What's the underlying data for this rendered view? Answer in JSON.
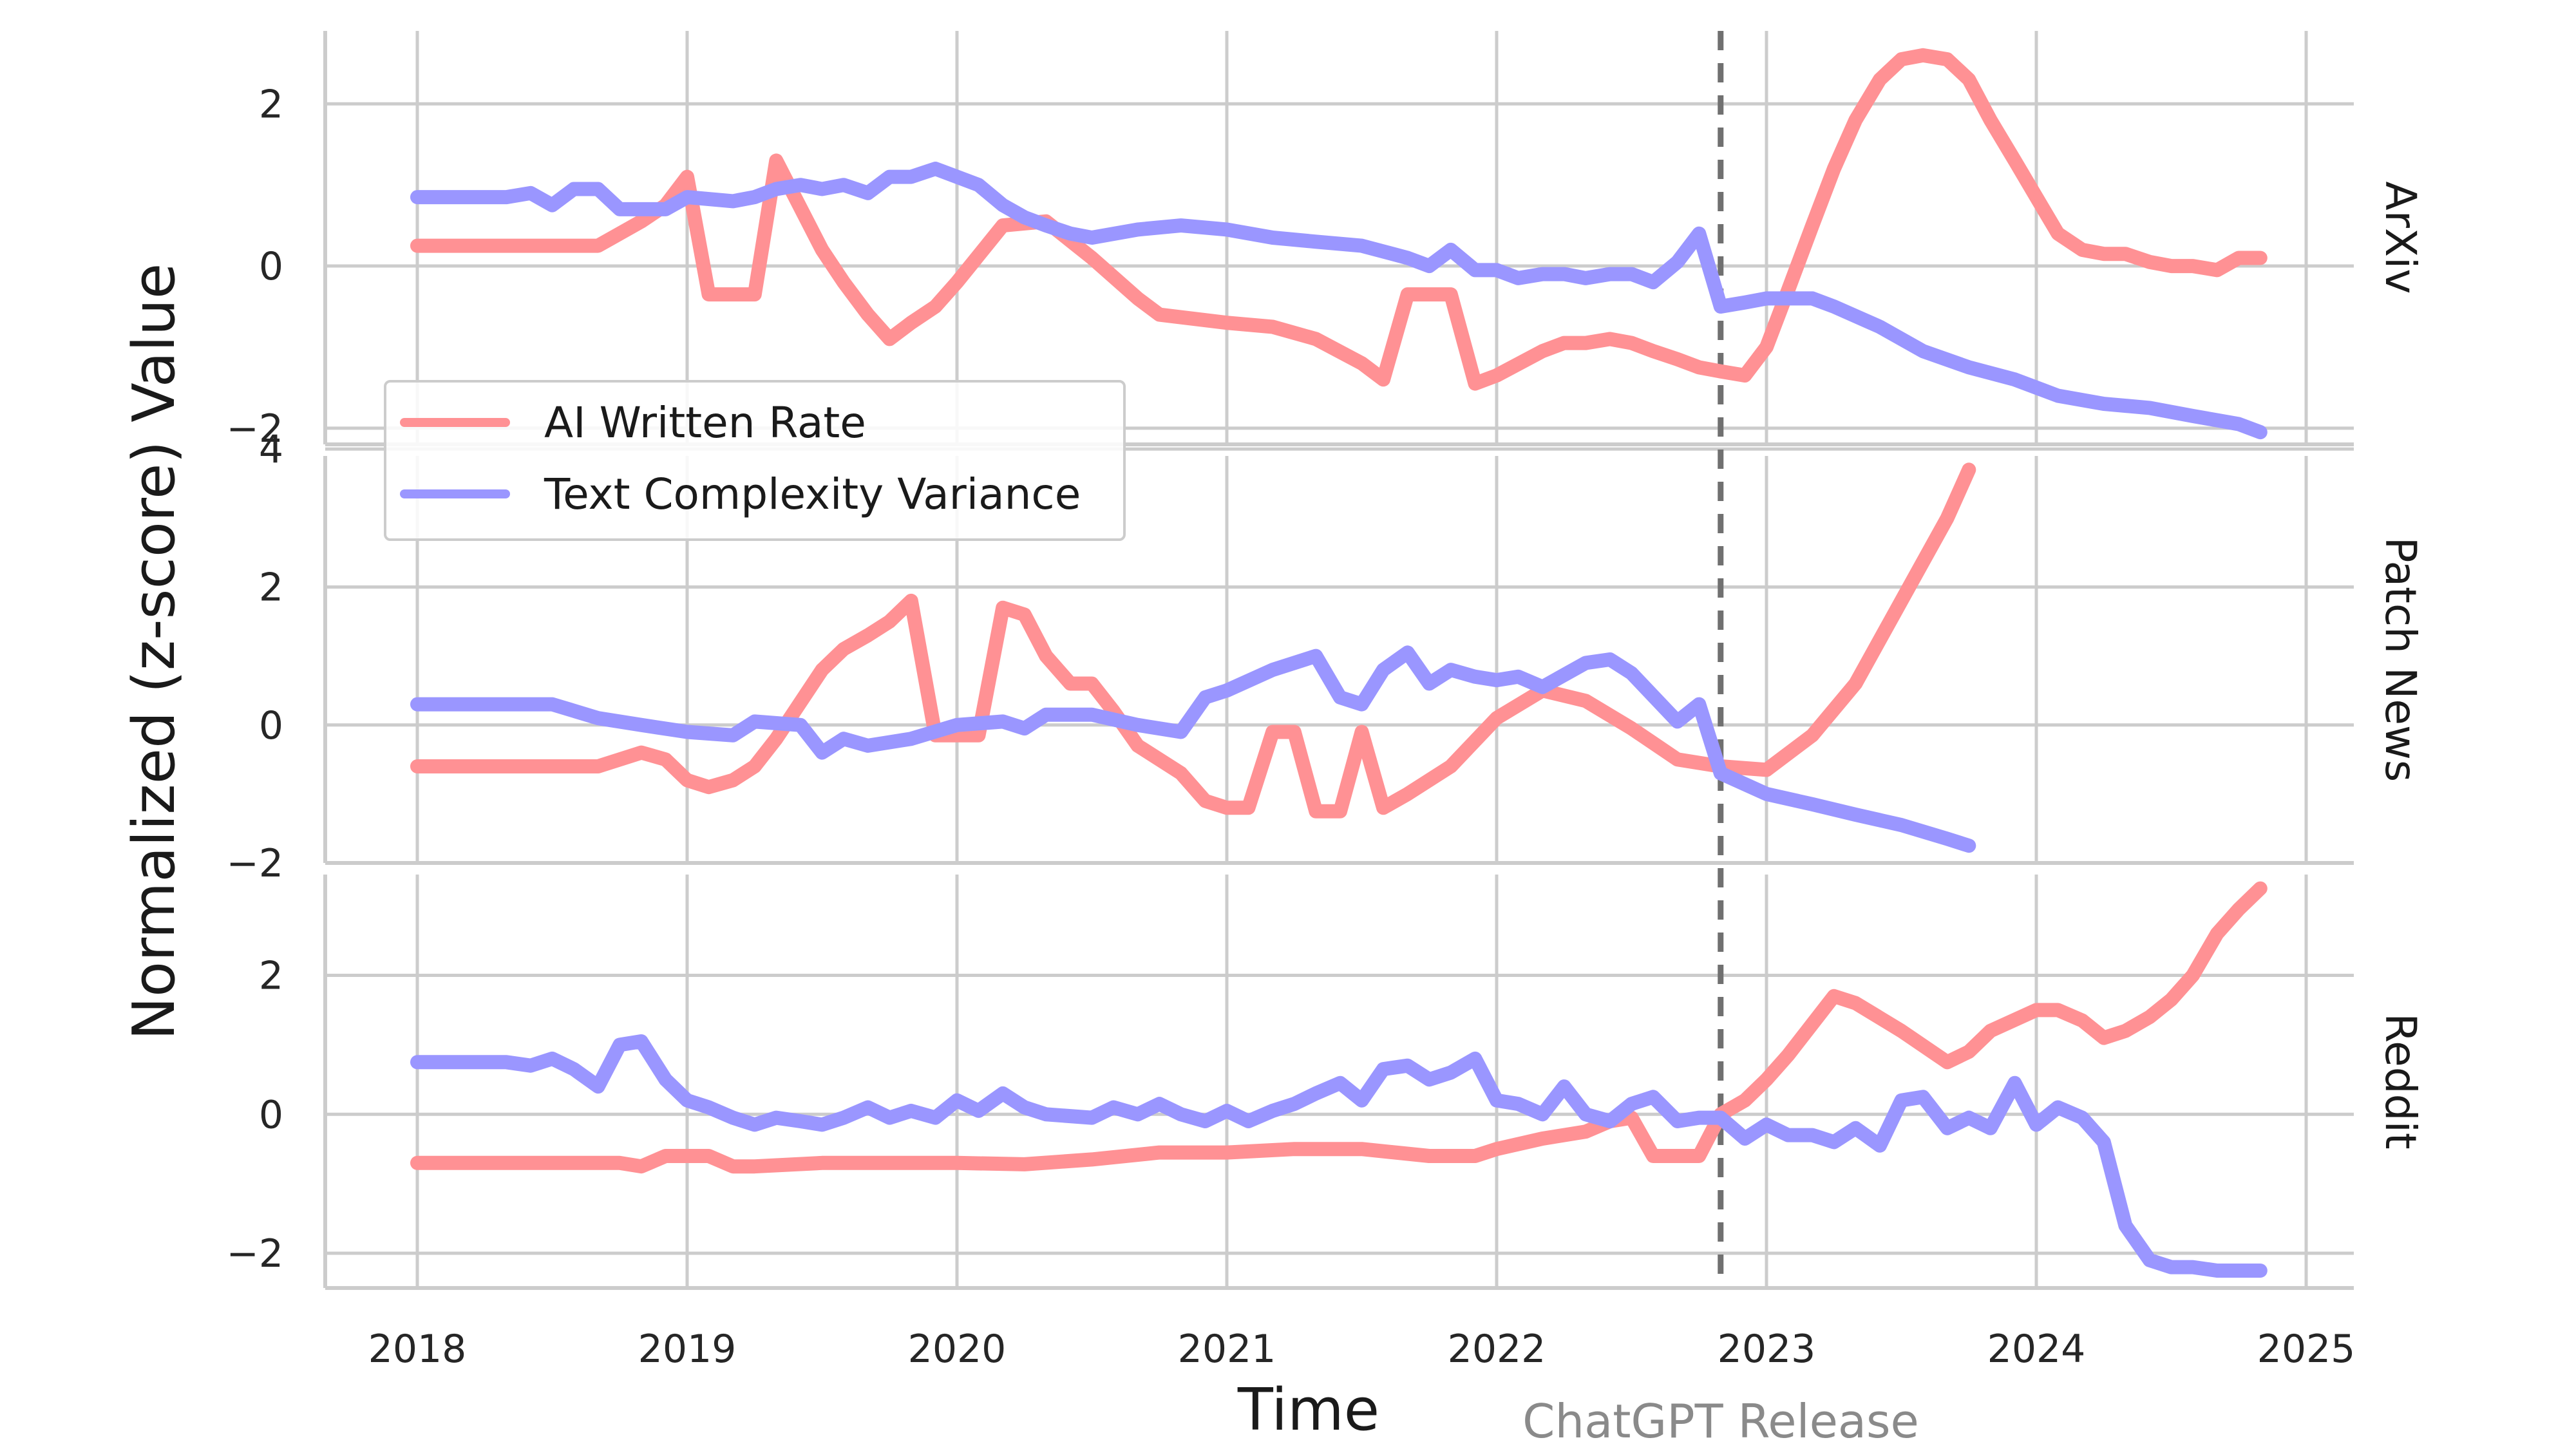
{
  "chart_data": {
    "type": "line",
    "xlabel": "Time",
    "ylabel": "Normalized (z-score) Value",
    "x_ticks": [
      "2018",
      "2019",
      "2020",
      "2021",
      "2022",
      "2023",
      "2024",
      "2025"
    ],
    "annotation": {
      "label": "ChatGPT Release",
      "x": 2022.83
    },
    "colors": {
      "ai": "#ff9194",
      "complexity": "#9a96ff",
      "grid": "#cccccc",
      "annotation": "#707070"
    },
    "legend": [
      {
        "name": "AI Written Rate",
        "color": "#ff9194"
      },
      {
        "name": "Text Complexity Variance",
        "color": "#9a96ff"
      }
    ],
    "panels": [
      {
        "facet": "ArXiv",
        "ylim": [
          -2.2,
          2.9
        ],
        "yticks": [
          -2,
          0,
          2
        ],
        "ytick_labels": [
          "−2",
          "0",
          "2"
        ],
        "series": [
          {
            "name": "AI Written Rate",
            "x": [
              2018.0,
              2018.67,
              2018.83,
              2018.92,
              2019.0,
              2019.08,
              2019.25,
              2019.33,
              2019.5,
              2019.58,
              2019.67,
              2019.75,
              2019.83,
              2019.92,
              2020.0,
              2020.17,
              2020.33,
              2020.5,
              2020.67,
              2020.75,
              2021.0,
              2021.17,
              2021.33,
              2021.5,
              2021.58,
              2021.67,
              2021.75,
              2021.83,
              2021.92,
              2022.0,
              2022.17,
              2022.25,
              2022.33,
              2022.42,
              2022.5,
              2022.58,
              2022.67,
              2022.75,
              2022.83,
              2022.92,
              2023.0,
              2023.08,
              2023.17,
              2023.25,
              2023.33,
              2023.42,
              2023.5,
              2023.58,
              2023.67,
              2023.75,
              2023.83,
              2023.92,
              2024.0,
              2024.08,
              2024.17,
              2024.25,
              2024.33,
              2024.42,
              2024.5,
              2024.58,
              2024.67,
              2024.75,
              2024.83
            ],
            "y": [
              0.25,
              0.25,
              0.55,
              0.75,
              1.1,
              -0.35,
              -0.35,
              1.3,
              0.2,
              -0.2,
              -0.6,
              -0.9,
              -0.7,
              -0.5,
              -0.2,
              0.5,
              0.55,
              0.1,
              -0.4,
              -0.6,
              -0.7,
              -0.75,
              -0.9,
              -1.2,
              -1.4,
              -0.35,
              -0.35,
              -0.35,
              -1.45,
              -1.35,
              -1.05,
              -0.95,
              -0.95,
              -0.9,
              -0.95,
              -1.05,
              -1.15,
              -1.25,
              -1.3,
              -1.35,
              -1.0,
              -0.3,
              0.5,
              1.2,
              1.8,
              2.3,
              2.55,
              2.6,
              2.55,
              2.3,
              1.8,
              1.3,
              0.85,
              0.4,
              0.2,
              0.15,
              0.15,
              0.05,
              0.0,
              0.0,
              -0.05,
              0.1,
              0.1
            ]
          },
          {
            "name": "Text Complexity Variance",
            "x": [
              2018.0,
              2018.33,
              2018.42,
              2018.5,
              2018.58,
              2018.67,
              2018.75,
              2018.83,
              2018.92,
              2019.0,
              2019.17,
              2019.25,
              2019.33,
              2019.42,
              2019.5,
              2019.58,
              2019.67,
              2019.75,
              2019.83,
              2019.92,
              2020.0,
              2020.08,
              2020.17,
              2020.25,
              2020.33,
              2020.42,
              2020.5,
              2020.67,
              2020.83,
              2021.0,
              2021.17,
              2021.33,
              2021.5,
              2021.67,
              2021.75,
              2021.83,
              2021.92,
              2022.0,
              2022.08,
              2022.17,
              2022.25,
              2022.33,
              2022.42,
              2022.5,
              2022.58,
              2022.67,
              2022.75,
              2022.83,
              2022.92,
              2023.0,
              2023.17,
              2023.25,
              2023.42,
              2023.58,
              2023.75,
              2023.92,
              2024.08,
              2024.25,
              2024.42,
              2024.58,
              2024.75,
              2024.83
            ],
            "y": [
              0.85,
              0.85,
              0.9,
              0.75,
              0.95,
              0.95,
              0.7,
              0.7,
              0.7,
              0.85,
              0.8,
              0.85,
              0.95,
              1.0,
              0.95,
              1.0,
              0.9,
              1.1,
              1.1,
              1.2,
              1.1,
              1.0,
              0.75,
              0.6,
              0.5,
              0.4,
              0.35,
              0.45,
              0.5,
              0.45,
              0.35,
              0.3,
              0.25,
              0.1,
              0.0,
              0.2,
              -0.05,
              -0.05,
              -0.15,
              -0.1,
              -0.1,
              -0.15,
              -0.1,
              -0.1,
              -0.2,
              0.05,
              0.4,
              -0.5,
              -0.45,
              -0.4,
              -0.4,
              -0.5,
              -0.75,
              -1.05,
              -1.25,
              -1.4,
              -1.6,
              -1.7,
              -1.75,
              -1.85,
              -1.95,
              -2.05
            ]
          }
        ]
      },
      {
        "facet": "Patch News",
        "ylim": [
          -2.0,
          3.9
        ],
        "yticks": [
          -2,
          0,
          2,
          4
        ],
        "ytick_labels": [
          "−2",
          "0",
          "2",
          "4"
        ],
        "series": [
          {
            "name": "AI Written Rate",
            "x": [
              2018.0,
              2018.25,
              2018.5,
              2018.67,
              2018.83,
              2018.92,
              2019.0,
              2019.08,
              2019.17,
              2019.25,
              2019.33,
              2019.5,
              2019.58,
              2019.67,
              2019.75,
              2019.83,
              2019.92,
              2020.0,
              2020.08,
              2020.17,
              2020.25,
              2020.33,
              2020.42,
              2020.5,
              2020.58,
              2020.67,
              2020.83,
              2020.92,
              2021.0,
              2021.08,
              2021.17,
              2021.25,
              2021.33,
              2021.42,
              2021.5,
              2021.58,
              2021.67,
              2021.83,
              2022.0,
              2022.17,
              2022.33,
              2022.5,
              2022.67,
              2022.83,
              2023.0,
              2023.17,
              2023.33,
              2023.5,
              2023.67,
              2023.75
            ],
            "y": [
              -0.6,
              -0.6,
              -0.6,
              -0.6,
              -0.4,
              -0.5,
              -0.8,
              -0.9,
              -0.8,
              -0.6,
              -0.2,
              0.8,
              1.1,
              1.3,
              1.5,
              1.8,
              -0.15,
              -0.15,
              -0.15,
              1.7,
              1.6,
              1.0,
              0.6,
              0.6,
              0.2,
              -0.3,
              -0.7,
              -1.1,
              -1.2,
              -1.2,
              -0.1,
              -0.1,
              -1.25,
              -1.25,
              -0.1,
              -1.2,
              -1.0,
              -0.6,
              0.1,
              0.5,
              0.35,
              -0.05,
              -0.5,
              -0.6,
              -0.65,
              -0.15,
              0.6,
              1.8,
              3.0,
              3.7
            ]
          },
          {
            "name": "Text Complexity Variance",
            "x": [
              2018.0,
              2018.33,
              2018.5,
              2018.67,
              2018.83,
              2019.0,
              2019.17,
              2019.25,
              2019.42,
              2019.5,
              2019.58,
              2019.67,
              2019.83,
              2020.0,
              2020.17,
              2020.25,
              2020.33,
              2020.5,
              2020.67,
              2020.83,
              2020.92,
              2021.0,
              2021.17,
              2021.33,
              2021.42,
              2021.5,
              2021.58,
              2021.67,
              2021.75,
              2021.83,
              2021.92,
              2022.0,
              2022.08,
              2022.17,
              2022.33,
              2022.42,
              2022.5,
              2022.67,
              2022.75,
              2022.83,
              2023.0,
              2023.17,
              2023.33,
              2023.5,
              2023.67,
              2023.75
            ],
            "y": [
              0.3,
              0.3,
              0.3,
              0.1,
              0.0,
              -0.1,
              -0.15,
              0.05,
              0.0,
              -0.4,
              -0.2,
              -0.3,
              -0.2,
              0.0,
              0.05,
              -0.05,
              0.15,
              0.15,
              0.0,
              -0.1,
              0.4,
              0.5,
              0.8,
              1.0,
              0.4,
              0.3,
              0.8,
              1.05,
              0.6,
              0.8,
              0.7,
              0.65,
              0.7,
              0.55,
              0.9,
              0.95,
              0.75,
              0.05,
              0.3,
              -0.7,
              -1.0,
              -1.15,
              -1.3,
              -1.45,
              -1.65,
              -1.75
            ]
          }
        ]
      },
      {
        "facet": "Reddit",
        "ylim": [
          -2.5,
          3.45
        ],
        "yticks": [
          -2,
          0,
          2
        ],
        "ytick_labels": [
          "−2",
          "0",
          "2"
        ],
        "series": [
          {
            "name": "AI Written Rate",
            "x": [
              2018.0,
              2018.5,
              2018.75,
              2018.83,
              2018.92,
              2019.0,
              2019.08,
              2019.17,
              2019.25,
              2019.5,
              2019.75,
              2020.0,
              2020.25,
              2020.5,
              2020.75,
              2021.0,
              2021.25,
              2021.5,
              2021.75,
              2021.92,
              2022.0,
              2022.17,
              2022.33,
              2022.42,
              2022.5,
              2022.58,
              2022.67,
              2022.75,
              2022.83,
              2022.92,
              2023.0,
              2023.08,
              2023.17,
              2023.25,
              2023.33,
              2023.5,
              2023.67,
              2023.75,
              2023.83,
              2024.0,
              2024.08,
              2024.17,
              2024.25,
              2024.33,
              2024.42,
              2024.5,
              2024.58,
              2024.67,
              2024.75,
              2024.83
            ],
            "y": [
              -0.7,
              -0.7,
              -0.7,
              -0.75,
              -0.6,
              -0.6,
              -0.6,
              -0.75,
              -0.75,
              -0.7,
              -0.7,
              -0.7,
              -0.72,
              -0.65,
              -0.55,
              -0.55,
              -0.5,
              -0.5,
              -0.6,
              -0.6,
              -0.5,
              -0.35,
              -0.25,
              -0.1,
              -0.05,
              -0.6,
              -0.6,
              -0.6,
              0.0,
              0.2,
              0.5,
              0.85,
              1.3,
              1.7,
              1.6,
              1.2,
              0.75,
              0.9,
              1.2,
              1.5,
              1.5,
              1.35,
              1.1,
              1.2,
              1.4,
              1.65,
              2.0,
              2.6,
              2.95,
              3.25
            ]
          },
          {
            "name": "Text Complexity Variance",
            "x": [
              2018.0,
              2018.33,
              2018.42,
              2018.5,
              2018.58,
              2018.67,
              2018.75,
              2018.83,
              2018.92,
              2019.0,
              2019.08,
              2019.17,
              2019.25,
              2019.33,
              2019.42,
              2019.5,
              2019.58,
              2019.67,
              2019.75,
              2019.83,
              2019.92,
              2020.0,
              2020.08,
              2020.17,
              2020.25,
              2020.33,
              2020.5,
              2020.58,
              2020.67,
              2020.75,
              2020.83,
              2020.92,
              2021.0,
              2021.08,
              2021.17,
              2021.25,
              2021.33,
              2021.42,
              2021.5,
              2021.58,
              2021.67,
              2021.75,
              2021.83,
              2021.92,
              2022.0,
              2022.08,
              2022.17,
              2022.25,
              2022.33,
              2022.42,
              2022.5,
              2022.58,
              2022.67,
              2022.75,
              2022.83,
              2022.92,
              2023.0,
              2023.08,
              2023.17,
              2023.25,
              2023.33,
              2023.42,
              2023.5,
              2023.58,
              2023.67,
              2023.75,
              2023.83,
              2023.92,
              2024.0,
              2024.08,
              2024.17,
              2024.25,
              2024.33,
              2024.42,
              2024.5,
              2024.58,
              2024.67,
              2024.75,
              2024.83
            ],
            "y": [
              0.75,
              0.75,
              0.7,
              0.8,
              0.65,
              0.4,
              1.0,
              1.05,
              0.5,
              0.2,
              0.1,
              -0.05,
              -0.15,
              -0.05,
              -0.1,
              -0.15,
              -0.05,
              0.1,
              -0.05,
              0.05,
              -0.05,
              0.2,
              0.05,
              0.3,
              0.1,
              0.0,
              -0.05,
              0.1,
              0.0,
              0.15,
              0.0,
              -0.1,
              0.05,
              -0.1,
              0.05,
              0.15,
              0.3,
              0.45,
              0.2,
              0.65,
              0.7,
              0.5,
              0.6,
              0.8,
              0.2,
              0.15,
              0.0,
              0.4,
              0.0,
              -0.1,
              0.15,
              0.25,
              -0.1,
              -0.05,
              -0.05,
              -0.35,
              -0.15,
              -0.3,
              -0.3,
              -0.4,
              -0.2,
              -0.45,
              0.2,
              0.25,
              -0.2,
              -0.05,
              -0.2,
              0.45,
              -0.15,
              0.1,
              -0.05,
              -0.4,
              -1.6,
              -2.1,
              -2.2,
              -2.2,
              -2.25,
              -2.25,
              -2.25
            ]
          }
        ]
      }
    ]
  }
}
